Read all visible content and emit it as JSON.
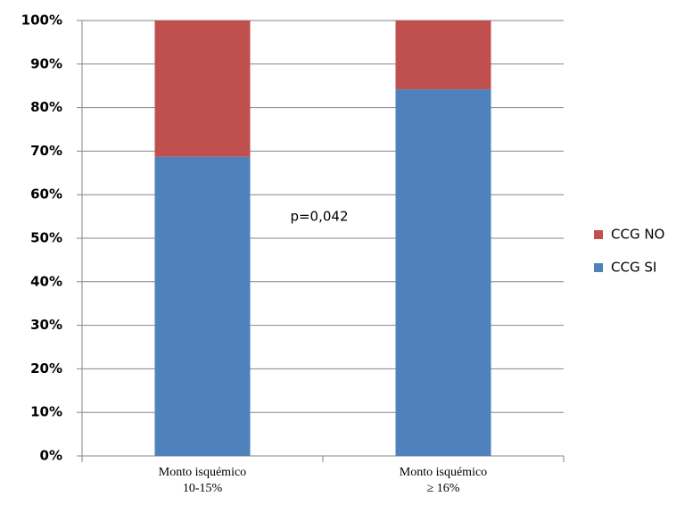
{
  "chart_data": {
    "type": "stacked_bar",
    "categories": [
      [
        "Monto isquémico",
        "10-15%"
      ],
      [
        "Monto isquémico",
        "≥ 16%"
      ]
    ],
    "series": [
      {
        "name": "CCG SI",
        "color": "#4f81bd",
        "values": [
          68.7,
          84.2
        ]
      },
      {
        "name": "CCG NO",
        "color": "#c0504d",
        "values": [
          31.3,
          15.8
        ]
      }
    ],
    "ylim": [
      0,
      100
    ],
    "yticks": [
      {
        "value": 0,
        "label": "0%"
      },
      {
        "value": 10,
        "label": "10%"
      },
      {
        "value": 20,
        "label": "20%"
      },
      {
        "value": 30,
        "label": "30%"
      },
      {
        "value": 40,
        "label": "40%"
      },
      {
        "value": 50,
        "label": "50%"
      },
      {
        "value": 60,
        "label": "60%"
      },
      {
        "value": 70,
        "label": "70%"
      },
      {
        "value": 80,
        "label": "80%"
      },
      {
        "value": 90,
        "label": "90%"
      },
      {
        "value": 100,
        "label": "100%"
      }
    ],
    "grid": true,
    "legend": "right",
    "annotation": "p=0,042"
  }
}
